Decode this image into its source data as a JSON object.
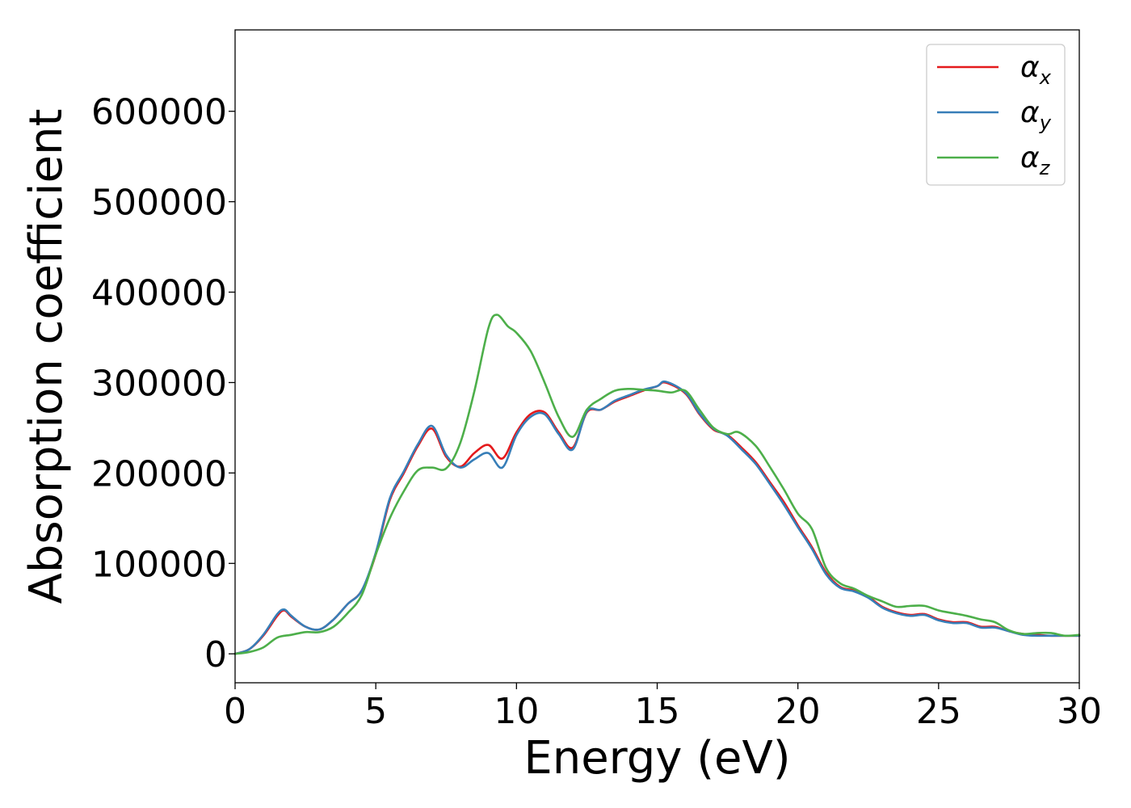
{
  "chart_data": {
    "type": "line",
    "title": "",
    "xlabel": "Energy (eV)",
    "ylabel": "Absorption coefficient",
    "xlim": [
      0,
      30
    ],
    "ylim": [
      -32000,
      690000
    ],
    "xticks": [
      0,
      5,
      10,
      15,
      20,
      25,
      30
    ],
    "xtick_labels": [
      "0",
      "5",
      "10",
      "15",
      "20",
      "25",
      "30"
    ],
    "yticks": [
      0,
      100000,
      200000,
      300000,
      400000,
      500000,
      600000
    ],
    "ytick_labels": [
      "0",
      "100000",
      "200000",
      "300000",
      "400000",
      "500000",
      "600000"
    ],
    "grid": false,
    "legend_position": "top-right",
    "series": [
      {
        "name": "α",
        "name_subscript": "x",
        "color": "#e41a1c",
        "x": [
          0,
          0.5,
          1.0,
          1.5,
          1.75,
          2.0,
          2.5,
          3.0,
          3.5,
          4.0,
          4.5,
          5.0,
          5.5,
          6.0,
          6.5,
          7.0,
          7.5,
          8.0,
          8.5,
          9.0,
          9.5,
          10.0,
          10.5,
          11.0,
          11.5,
          12.0,
          12.5,
          13.0,
          13.5,
          14.0,
          14.5,
          15.0,
          15.3,
          16.0,
          16.5,
          17.0,
          17.5,
          18.0,
          18.5,
          19.0,
          19.5,
          20.0,
          20.5,
          21.0,
          21.5,
          22.0,
          22.5,
          23.0,
          23.5,
          24.0,
          24.5,
          25.0,
          25.5,
          26.0,
          26.5,
          27.0,
          27.5,
          28.0,
          28.5,
          29.0,
          29.5,
          30.0
        ],
        "values": [
          0,
          5000,
          20000,
          42000,
          48000,
          41000,
          30000,
          27000,
          38000,
          55000,
          70000,
          110000,
          170000,
          200000,
          230000,
          249000,
          218000,
          207000,
          222000,
          231000,
          216000,
          245000,
          265000,
          267000,
          245000,
          228000,
          267000,
          270000,
          279000,
          285000,
          291000,
          296000,
          300000,
          288000,
          265000,
          248000,
          242000,
          228000,
          212000,
          190000,
          168000,
          142000,
          118000,
          90000,
          74000,
          70000,
          63000,
          52000,
          46000,
          43000,
          44000,
          38000,
          35000,
          35000,
          30000,
          30000,
          25000,
          22000,
          21000,
          20000,
          20000,
          20000
        ]
      },
      {
        "name": "α",
        "name_subscript": "y",
        "color": "#377eb8",
        "x": [
          0,
          0.5,
          1.0,
          1.5,
          1.75,
          2.0,
          2.5,
          3.0,
          3.5,
          4.0,
          4.5,
          5.0,
          5.5,
          6.0,
          6.5,
          7.0,
          7.5,
          8.0,
          8.5,
          9.0,
          9.5,
          10.0,
          10.5,
          11.0,
          11.5,
          12.0,
          12.5,
          13.0,
          13.5,
          14.0,
          14.5,
          15.0,
          15.3,
          16.0,
          16.5,
          17.0,
          17.5,
          18.0,
          18.5,
          19.0,
          19.5,
          20.0,
          20.5,
          21.0,
          21.5,
          22.0,
          22.5,
          23.0,
          23.5,
          24.0,
          24.5,
          25.0,
          25.5,
          26.0,
          26.5,
          27.0,
          27.5,
          28.0,
          28.5,
          29.0,
          29.5,
          30.0
        ],
        "values": [
          0,
          5000,
          21000,
          44000,
          49000,
          42000,
          30000,
          27000,
          38000,
          55000,
          70000,
          112000,
          172000,
          202000,
          232000,
          252000,
          220000,
          206000,
          215000,
          222000,
          206000,
          242000,
          262000,
          265000,
          243000,
          226000,
          268000,
          270000,
          280000,
          286000,
          292000,
          296000,
          301000,
          289000,
          266000,
          249000,
          241000,
          226000,
          210000,
          188000,
          165000,
          140000,
          116000,
          88000,
          73000,
          69000,
          62000,
          51000,
          45000,
          42000,
          43000,
          37000,
          34000,
          34000,
          29000,
          29000,
          25000,
          21000,
          20000,
          20000,
          20000,
          20000
        ]
      },
      {
        "name": "α",
        "name_subscript": "z",
        "color": "#4daf4a",
        "x": [
          0,
          0.5,
          1.0,
          1.5,
          2.0,
          2.5,
          3.0,
          3.5,
          4.0,
          4.5,
          5.0,
          5.5,
          6.0,
          6.5,
          7.0,
          7.5,
          8.0,
          8.5,
          9.0,
          9.3,
          9.7,
          10.0,
          10.5,
          11.0,
          11.5,
          12.0,
          12.5,
          13.0,
          13.5,
          14.0,
          14.5,
          15.0,
          15.5,
          16.0,
          16.5,
          17.0,
          17.5,
          17.9,
          18.5,
          19.0,
          19.5,
          20.0,
          20.5,
          21.0,
          21.5,
          22.0,
          22.5,
          23.0,
          23.5,
          24.0,
          24.5,
          25.0,
          25.5,
          26.0,
          26.5,
          27.0,
          27.5,
          28.0,
          28.5,
          29.0,
          29.5,
          30.0
        ],
        "values": [
          0,
          2000,
          7000,
          18000,
          21000,
          24000,
          24000,
          30000,
          45000,
          65000,
          110000,
          150000,
          180000,
          203000,
          206000,
          205000,
          233000,
          290000,
          360000,
          375000,
          362000,
          355000,
          335000,
          300000,
          262000,
          240000,
          270000,
          282000,
          291000,
          293000,
          292000,
          291000,
          289000,
          291000,
          270000,
          250000,
          243000,
          245000,
          230000,
          207000,
          182000,
          155000,
          138000,
          95000,
          78000,
          72000,
          64000,
          58000,
          52000,
          53000,
          53000,
          48000,
          45000,
          42000,
          38000,
          35000,
          26000,
          22000,
          23000,
          23000,
          20000,
          21000
        ]
      }
    ]
  }
}
